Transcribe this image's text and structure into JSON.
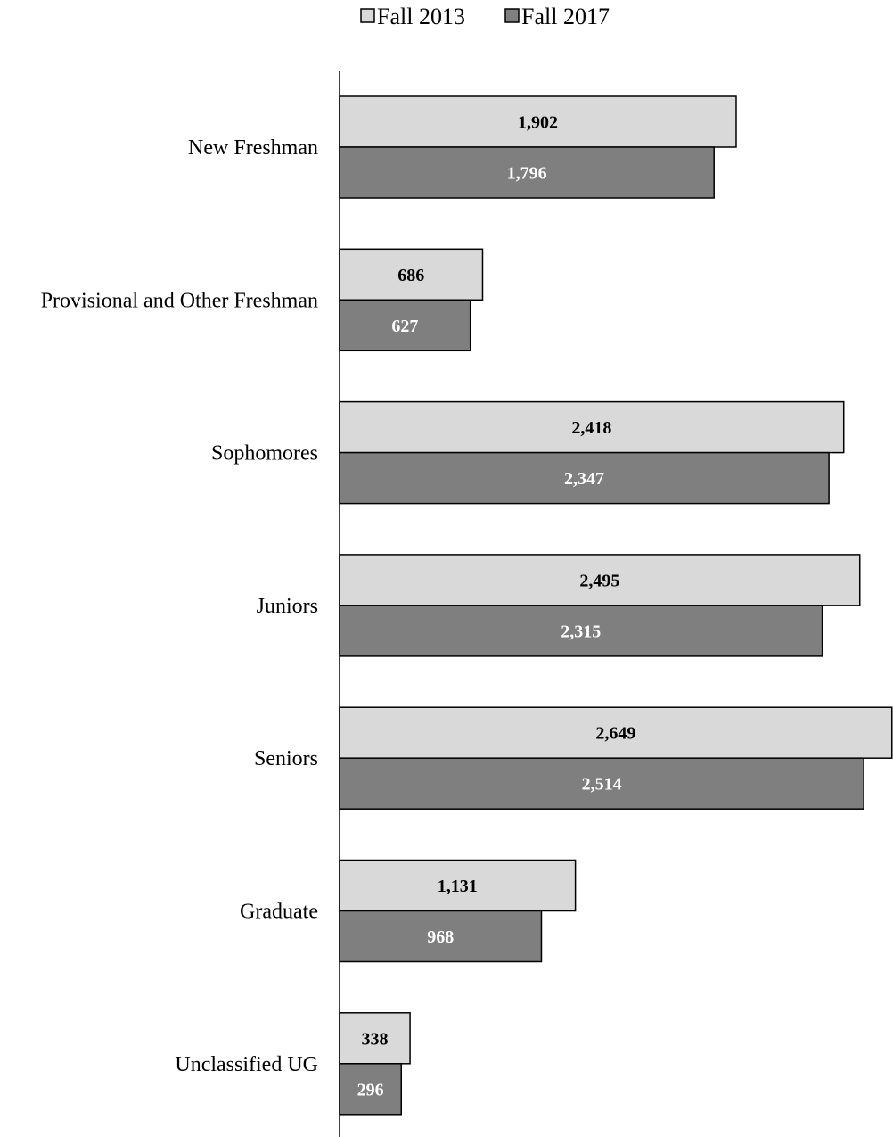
{
  "chart_data": {
    "type": "bar",
    "orientation": "horizontal",
    "title": "",
    "xlabel": "",
    "ylabel": "",
    "categories": [
      "New Freshman",
      "Provisional and Other Freshman",
      "Sophomores",
      "Juniors",
      "Seniors",
      "Graduate",
      "Unclassified UG"
    ],
    "series": [
      {
        "name": "Fall 2013",
        "values": [
          1902,
          686,
          2418,
          2495,
          2649,
          1131,
          338
        ],
        "labels": [
          "1,902",
          "686",
          "2,418",
          "2,495",
          "2,649",
          "1,131",
          "338"
        ],
        "color": "#d9d9d9",
        "label_color": "#000000"
      },
      {
        "name": "Fall 2017",
        "values": [
          1796,
          627,
          2347,
          2315,
          2514,
          968,
          296
        ],
        "labels": [
          "1,796",
          "627",
          "2,347",
          "2,315",
          "2,514",
          "968",
          "296"
        ],
        "color": "#7f7f7f",
        "label_color": "#ffffff"
      }
    ],
    "xlim": [
      0,
      2650
    ],
    "grid": false,
    "legend": "top-center"
  }
}
